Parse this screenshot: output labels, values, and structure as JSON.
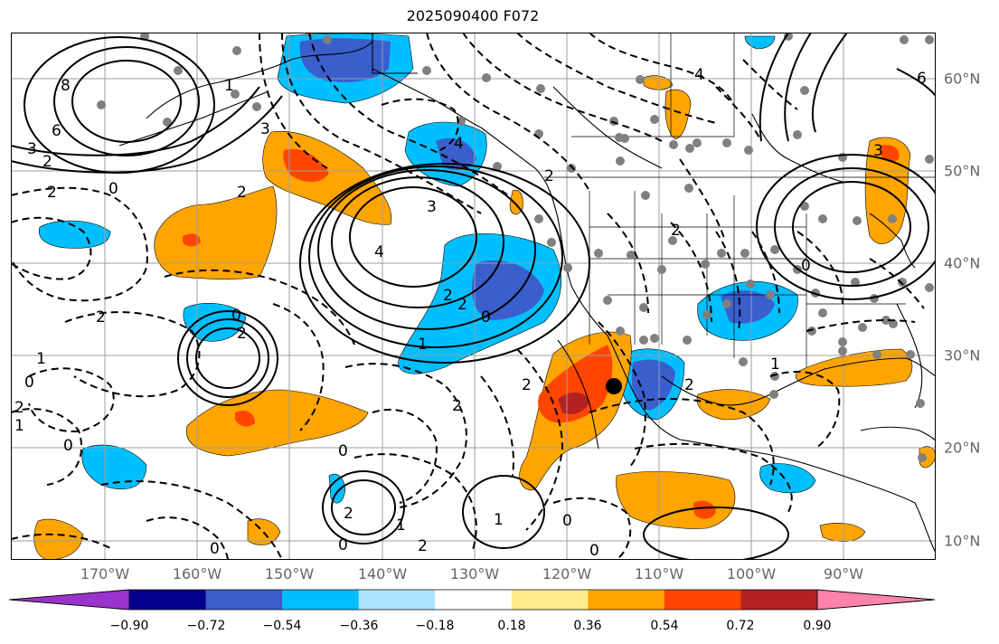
{
  "title": "2025090400 F072",
  "lon_labels": [
    "170°W",
    "160°W",
    "150°W",
    "140°W",
    "130°W",
    "120°W",
    "110°W",
    "100°W",
    "90°W"
  ],
  "lat_labels": [
    "60°N",
    "50°N",
    "40°N",
    "30°N",
    "20°N",
    "10°N"
  ],
  "colorbar": {
    "ticks": [
      "−0.90",
      "−0.72",
      "−0.54",
      "−0.36",
      "−0.18",
      "0.18",
      "0.36",
      "0.54",
      "0.72",
      "0.90"
    ],
    "colors": [
      "#9a32cd",
      "#00008b",
      "#3a5fcd",
      "#00bfff",
      "#aee3ff",
      "#ffffff",
      "#ffec8b",
      "#ffa500",
      "#ff4500",
      "#b22222",
      "#ff82ab"
    ]
  },
  "fill_colors": {
    "neg_light": "#00bfff",
    "neg_mid": "#3a5fcd",
    "pos_light": "#ffa500",
    "pos_mid": "#ff4500",
    "pos_dark": "#b22222"
  },
  "contour_labels": [
    "8",
    "6",
    "3",
    "2",
    "0",
    "2",
    "3",
    "4",
    "2",
    "2",
    "0",
    "1",
    "2",
    "1",
    "0",
    "0",
    "2",
    "2",
    "1",
    "2",
    "0",
    "1",
    "0",
    "0",
    "2",
    "0",
    "2",
    "1",
    "0",
    "2",
    "4",
    "3",
    "1",
    "0",
    "2",
    "3",
    "0",
    "6",
    "2",
    "1",
    "4",
    "2",
    "2"
  ]
}
